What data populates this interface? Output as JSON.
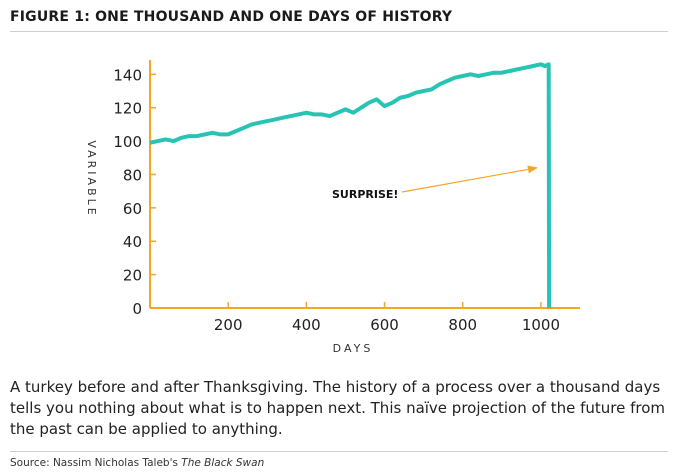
{
  "figure": {
    "title": "FIGURE 1: ONE THOUSAND AND ONE DAYS OF HISTORY",
    "caption": "A turkey before and after Thanksgiving. The history of a process over a thousand days tells you nothing about what is to happen next. This naïve projection of the future from the past can be applied to anything.",
    "source_prefix": "Source: Nassim Nicholas Taleb's ",
    "source_title": "The Black Swan"
  },
  "chart_data": {
    "type": "line",
    "xlabel": "DAYS",
    "ylabel": "VARIABLE",
    "xlim": [
      0,
      1100
    ],
    "ylim": [
      0,
      145
    ],
    "xticks": [
      200,
      400,
      600,
      800,
      1000
    ],
    "yticks": [
      0,
      20,
      40,
      60,
      80,
      100,
      120,
      140
    ],
    "grid": false,
    "colors": {
      "axis": "#f5a623",
      "series": "#27c4b4",
      "annotation": "#f5a623"
    },
    "series": [
      {
        "x": [
          0,
          20,
          40,
          60,
          80,
          100,
          120,
          140,
          160,
          180,
          200,
          220,
          240,
          260,
          280,
          300,
          320,
          340,
          360,
          380,
          400,
          420,
          440,
          460,
          480,
          500,
          520,
          540,
          560,
          580,
          600,
          620,
          640,
          660,
          680,
          700,
          720,
          740,
          760,
          780,
          800,
          820,
          840,
          860,
          880,
          900,
          920,
          940,
          960,
          980,
          1000,
          1010,
          1020,
          1021
        ],
        "y": [
          99,
          100,
          101,
          100,
          102,
          103,
          103,
          104,
          105,
          104,
          104,
          106,
          108,
          110,
          111,
          112,
          113,
          114,
          115,
          116,
          117,
          116,
          116,
          115,
          117,
          119,
          117,
          120,
          123,
          125,
          121,
          123,
          126,
          127,
          129,
          130,
          131,
          134,
          136,
          138,
          139,
          140,
          139,
          140,
          141,
          141,
          142,
          143,
          144,
          145,
          146,
          145,
          146,
          0
        ]
      }
    ],
    "annotation": {
      "text": "SURPRISE!",
      "arrow_to": {
        "x": 1000,
        "y": 84
      }
    }
  }
}
